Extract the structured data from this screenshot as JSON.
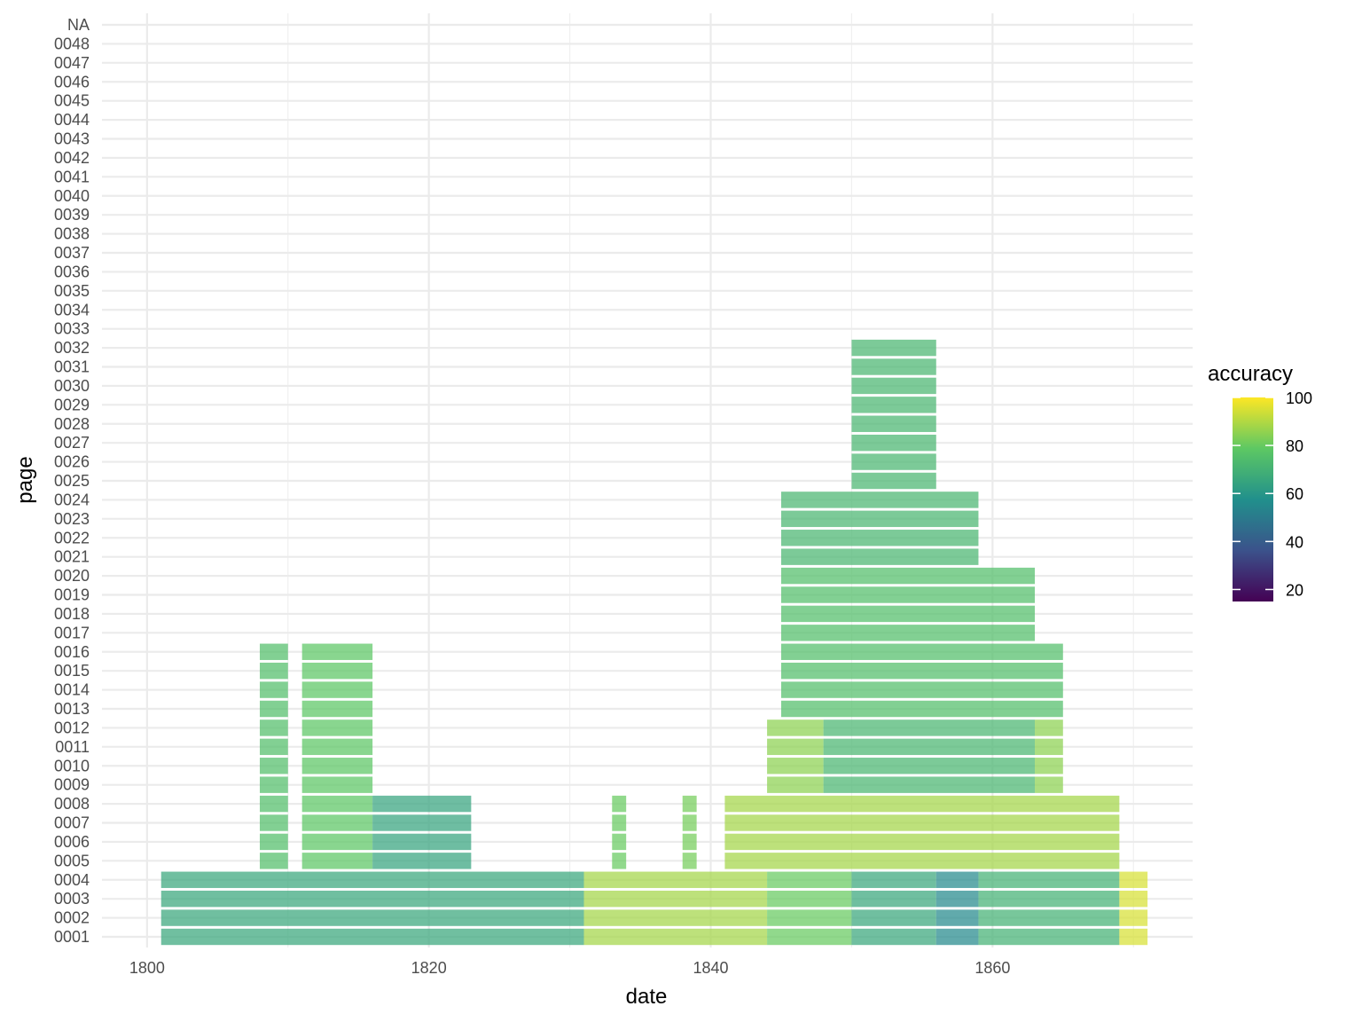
{
  "chart_data": {
    "type": "scatter",
    "xlabel": "date",
    "ylabel": "page",
    "x_ticks": [
      1800,
      1820,
      1840,
      1860
    ],
    "xlim": [
      1796.8,
      1874.2
    ],
    "y_categories": [
      "0001",
      "0002",
      "0003",
      "0004",
      "0005",
      "0006",
      "0007",
      "0008",
      "0009",
      "0010",
      "0011",
      "0012",
      "0013",
      "0014",
      "0015",
      "0016",
      "0017",
      "0018",
      "0019",
      "0020",
      "0021",
      "0022",
      "0023",
      "0024",
      "0025",
      "0026",
      "0027",
      "0028",
      "0029",
      "0030",
      "0031",
      "0032",
      "0033",
      "0034",
      "0035",
      "0036",
      "0037",
      "0038",
      "0039",
      "0040",
      "0041",
      "0042",
      "0043",
      "0044",
      "0045",
      "0046",
      "0047",
      "0048",
      "NA"
    ],
    "color_scale": {
      "name": "accuracy",
      "palette": "viridis",
      "range": [
        15,
        100
      ],
      "ticks": [
        20,
        40,
        60,
        80,
        100
      ],
      "colors": [
        "#440154",
        "#3b528b",
        "#21908c",
        "#5dc863",
        "#fde725"
      ]
    },
    "grid": true,
    "legend_position": "right",
    "regions": [
      {
        "x": [
          1801,
          1831
        ],
        "pages": [
          1,
          4
        ],
        "accuracy": 66
      },
      {
        "x": [
          1831,
          1844
        ],
        "pages": [
          1,
          4
        ],
        "accuracy": 88
      },
      {
        "x": [
          1844,
          1850
        ],
        "pages": [
          1,
          4
        ],
        "accuracy": 80
      },
      {
        "x": [
          1850,
          1856
        ],
        "pages": [
          1,
          4
        ],
        "accuracy": 66
      },
      {
        "x": [
          1856,
          1859
        ],
        "pages": [
          1,
          4
        ],
        "accuracy": 55
      },
      {
        "x": [
          1859,
          1869
        ],
        "pages": [
          1,
          4
        ],
        "accuracy": 70
      },
      {
        "x": [
          1869,
          1871
        ],
        "pages": [
          1,
          4
        ],
        "accuracy": 95
      },
      {
        "x": [
          1841,
          1869
        ],
        "pages": [
          5,
          8
        ],
        "accuracy": 88
      },
      {
        "x": [
          1844,
          1848
        ],
        "pages": [
          9,
          12
        ],
        "accuracy": 85
      },
      {
        "x": [
          1848,
          1863
        ],
        "pages": [
          9,
          12
        ],
        "accuracy": 72
      },
      {
        "x": [
          1863,
          1865
        ],
        "pages": [
          9,
          12
        ],
        "accuracy": 85
      },
      {
        "x": [
          1845,
          1865
        ],
        "pages": [
          13,
          16
        ],
        "accuracy": 75
      },
      {
        "x": [
          1845,
          1863
        ],
        "pages": [
          17,
          20
        ],
        "accuracy": 75
      },
      {
        "x": [
          1845,
          1859
        ],
        "pages": [
          21,
          24
        ],
        "accuracy": 72
      },
      {
        "x": [
          1850,
          1856
        ],
        "pages": [
          25,
          32
        ],
        "accuracy": 72
      },
      {
        "x": [
          1808,
          1810
        ],
        "pages": [
          5,
          16
        ],
        "accuracy": 75
      },
      {
        "x": [
          1811,
          1816
        ],
        "pages": [
          5,
          16
        ],
        "accuracy": 78
      },
      {
        "x": [
          1816,
          1823
        ],
        "pages": [
          5,
          8
        ],
        "accuracy": 65
      },
      {
        "x": [
          1833,
          1834
        ],
        "pages": [
          5,
          8
        ],
        "accuracy": 80
      },
      {
        "x": [
          1838,
          1839
        ],
        "pages": [
          5,
          8
        ],
        "accuracy": 82
      }
    ]
  }
}
